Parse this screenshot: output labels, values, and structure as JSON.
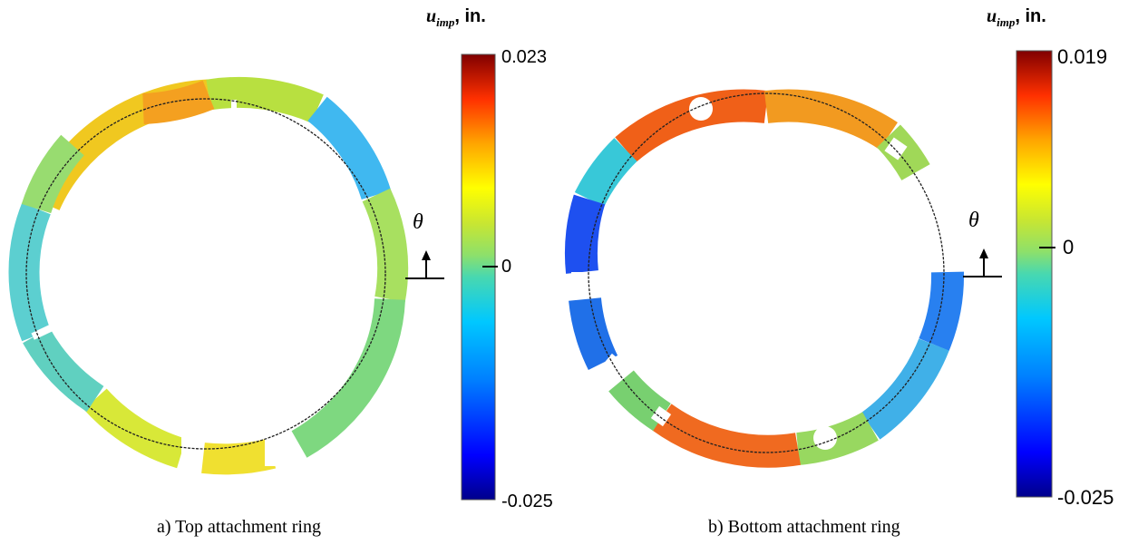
{
  "panels": [
    {
      "caption": "a) Top attachment ring",
      "colorbar": {
        "title_var": "u",
        "title_sub": "imp",
        "title_unit": ", in.",
        "max_label": "0.023",
        "zero_label": "0",
        "min_label": "-0.025",
        "max_value": 0.023,
        "min_value": -0.025
      },
      "angle_symbol": "θ"
    },
    {
      "caption": "b) Bottom attachment ring",
      "colorbar": {
        "title_var": "u",
        "title_sub": "imp",
        "title_unit": ", in.",
        "max_label": "0.019",
        "zero_label": "0",
        "min_label": "-0.025",
        "max_value": 0.019,
        "min_value": -0.025
      },
      "angle_symbol": "θ"
    }
  ],
  "colormap": [
    "#00008b",
    "#0000ff",
    "#0080ff",
    "#00c0ff",
    "#40e0d0",
    "#90ee90",
    "#c8e632",
    "#ffff00",
    "#ffa500",
    "#ff4500",
    "#cc0000",
    "#800000"
  ]
}
